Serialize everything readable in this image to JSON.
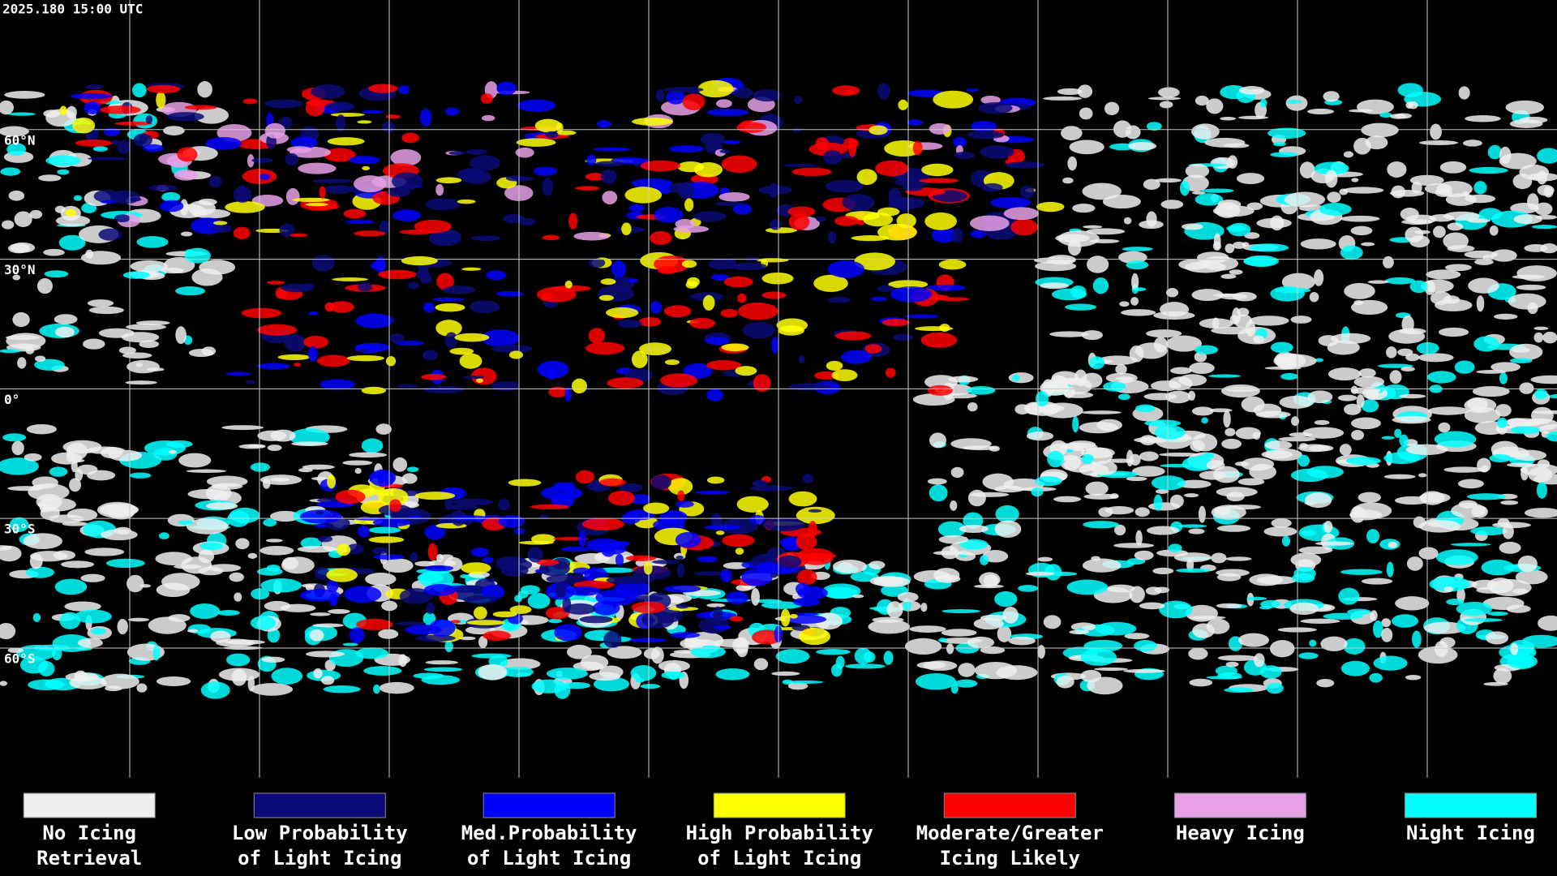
{
  "header": {
    "timestamp": "2025.180 15:00 UTC"
  },
  "map": {
    "latitude_labels": [
      "60°N",
      "30°N",
      "0°",
      "30°S",
      "60°S"
    ]
  },
  "legend": {
    "items": [
      {
        "label": [
          "No Icing",
          "Retrieval"
        ],
        "color": "#eeeeee"
      },
      {
        "label": [
          "Low Probability",
          "of Light Icing"
        ],
        "color": "#0a0a78"
      },
      {
        "label": [
          "Med.Probability",
          "of Light Icing"
        ],
        "color": "#0000ff"
      },
      {
        "label": [
          "High Probability",
          "of Light Icing"
        ],
        "color": "#ffff00"
      },
      {
        "label": [
          "Moderate/Greater",
          "Icing Likely"
        ],
        "color": "#ff0000"
      },
      {
        "label": [
          "Heavy Icing"
        ],
        "color": "#e6a0e6"
      },
      {
        "label": [
          "Night Icing"
        ],
        "color": "#00ffff"
      }
    ]
  }
}
